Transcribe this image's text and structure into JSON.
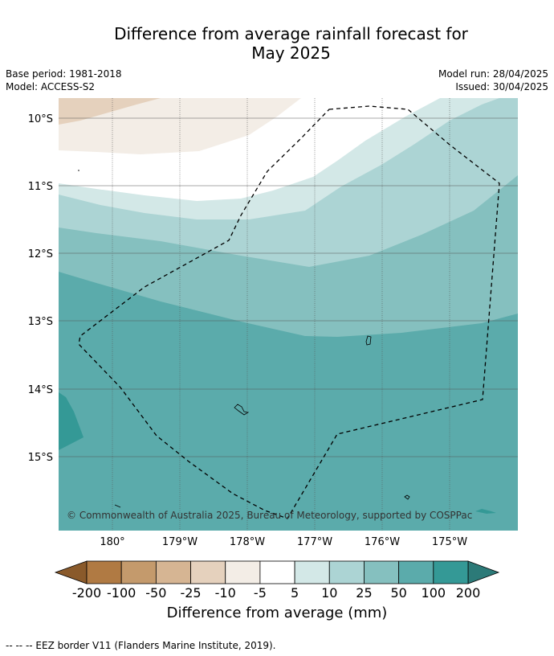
{
  "header": {
    "title_line1": "Difference from average rainfall forecast for",
    "title_line2": "May 2025",
    "base_period": "Base period: 1981-2018",
    "model": "Model: ACCESS-S2",
    "model_run": "Model run: 28/04/2025",
    "issued": "Issued: 30/04/2025"
  },
  "map": {
    "lat_labels": [
      "10°S",
      "11°S",
      "12°S",
      "13°S",
      "14°S",
      "15°S"
    ],
    "lon_labels": [
      "180°",
      "179°W",
      "178°W",
      "177°W",
      "176°W",
      "175°W"
    ],
    "copyright": "© Commonwealth of Australia 2025, Bureau of Meteorology, supported by COSPPac",
    "colors": {
      "c_-150": "#b07a43",
      "c_-75": "#c49a6c",
      "c_-37": "#d6b593",
      "c_-17": "#e5d1bd",
      "c_-7": "#f3ede6",
      "c_0": "#ffffff",
      "c_7": "#d3e8e7",
      "c_17": "#acd4d4",
      "c_37": "#85c0bf",
      "c_75": "#5babab",
      "c_150": "#349996",
      "c_over": "#2c7a78",
      "c_under": "#8a5a2b"
    }
  },
  "colorbar": {
    "ticks": [
      "-200",
      "-100",
      "-50",
      "-25",
      "-10",
      "-5",
      "5",
      "10",
      "25",
      "50",
      "100",
      "200"
    ],
    "title": "Difference from average (mm)"
  },
  "footer": {
    "legend_text": "-- -- -- EEZ border V11 (Flanders Marine Institute, 2019)."
  }
}
